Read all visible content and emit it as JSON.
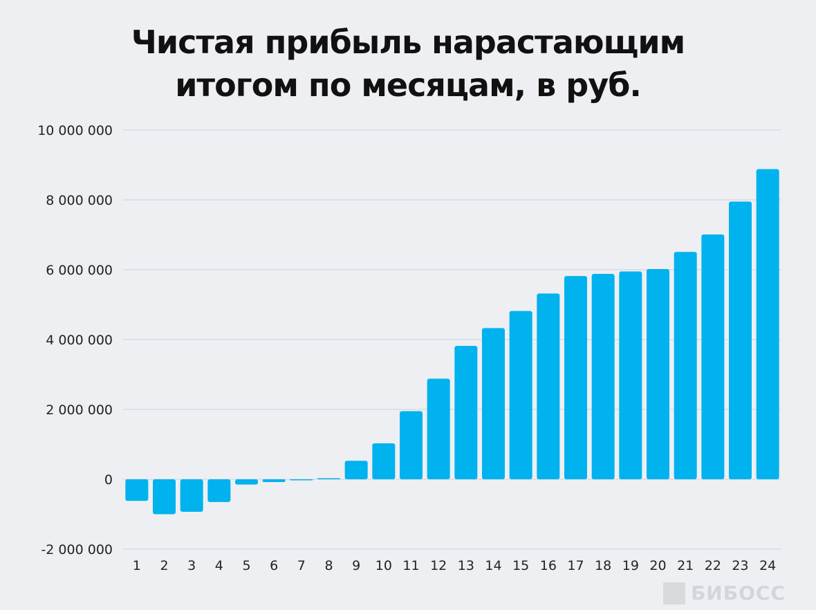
{
  "chart_data": {
    "type": "bar",
    "title_lines": [
      "Чистая прибыль нарастающим",
      "итогом по месяцам, в руб."
    ],
    "categories": [
      "1",
      "2",
      "3",
      "4",
      "5",
      "6",
      "7",
      "8",
      "9",
      "10",
      "11",
      "12",
      "13",
      "14",
      "15",
      "16",
      "17",
      "18",
      "19",
      "20",
      "21",
      "22",
      "23",
      "24"
    ],
    "values": [
      -620000,
      -1000000,
      -930000,
      -650000,
      -150000,
      -80000,
      -20000,
      20000,
      530000,
      1030000,
      1950000,
      2880000,
      3820000,
      4330000,
      4820000,
      5320000,
      5820000,
      5880000,
      5950000,
      6020000,
      6510000,
      7010000,
      7950000,
      8880000
    ],
    "ylim": [
      -2000000,
      10000000
    ],
    "yticks": [
      -2000000,
      0,
      2000000,
      4000000,
      6000000,
      8000000,
      10000000
    ],
    "ytick_labels": [
      "-2 000 000",
      "0",
      "2 000 000",
      "4 000 000",
      "6 000 000",
      "8 000 000",
      "10 000 000"
    ],
    "xlabel": "",
    "ylabel": "",
    "grid": true,
    "bar_color": "#00b2ee",
    "grid_color": "#cfd1d8"
  },
  "watermark": {
    "text": "БИБОСС"
  }
}
